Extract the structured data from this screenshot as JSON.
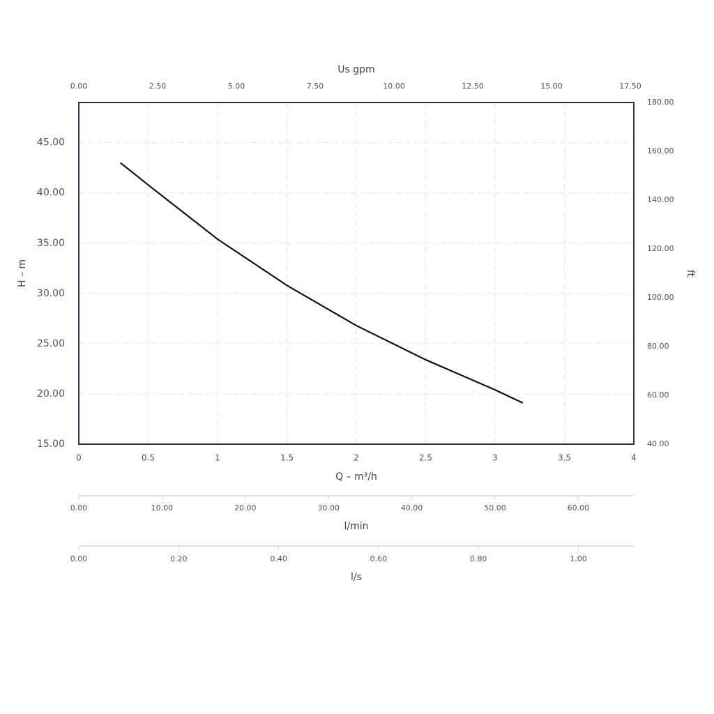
{
  "chart_data": {
    "type": "line",
    "xlabel": "Q – m³/h",
    "ylabel": "H – m",
    "y2label": "ft",
    "x": [
      0.3,
      0.5,
      1.0,
      1.5,
      2.0,
      2.5,
      3.0,
      3.2
    ],
    "values": [
      43.0,
      40.8,
      35.4,
      30.8,
      26.8,
      23.4,
      20.4,
      19.1
    ],
    "color": "#111111",
    "xlim": [
      0,
      4
    ],
    "xticks": [
      0,
      0.5,
      1,
      1.5,
      2,
      2.5,
      3,
      3.5,
      4
    ],
    "ylim": [
      15,
      49
    ],
    "yticks": [
      {
        "value": 15,
        "label": "15.00"
      },
      {
        "value": 20,
        "label": "20.00"
      },
      {
        "value": 25,
        "label": "25.00"
      },
      {
        "value": 30,
        "label": "30.00"
      },
      {
        "value": 35,
        "label": "35.00"
      },
      {
        "value": 40,
        "label": "40.00"
      },
      {
        "value": 45,
        "label": "45.00"
      }
    ],
    "y2lim": [
      40,
      180
    ],
    "y2ticks": [
      {
        "value": 40,
        "label": "40.00"
      },
      {
        "value": 60,
        "label": "60.00"
      },
      {
        "value": 80,
        "label": "80.00"
      },
      {
        "value": 100,
        "label": "100.00"
      },
      {
        "value": 120,
        "label": "120.00"
      },
      {
        "value": 140,
        "label": "140.00"
      },
      {
        "value": 160,
        "label": "160.00"
      },
      {
        "value": 180,
        "label": "180.00"
      }
    ],
    "grid": true,
    "extra_x_axes": [
      {
        "label": "Us gpm",
        "lim": [
          0,
          17.61
        ],
        "ticks": [
          {
            "value": 0,
            "label": "0.00"
          },
          {
            "value": 2.5,
            "label": "2.50"
          },
          {
            "value": 5,
            "label": "5.00"
          },
          {
            "value": 7.5,
            "label": "7.50"
          },
          {
            "value": 10,
            "label": "10.00"
          },
          {
            "value": 12.5,
            "label": "12.50"
          },
          {
            "value": 15,
            "label": "15.00"
          },
          {
            "value": 17.5,
            "label": "17.50"
          }
        ]
      },
      {
        "label": "l/min",
        "lim": [
          0,
          66.67
        ],
        "ticks": [
          {
            "value": 0,
            "label": "0.00"
          },
          {
            "value": 10,
            "label": "10.00"
          },
          {
            "value": 20,
            "label": "20.00"
          },
          {
            "value": 30,
            "label": "30.00"
          },
          {
            "value": 40,
            "label": "40.00"
          },
          {
            "value": 50,
            "label": "50.00"
          },
          {
            "value": 60,
            "label": "60.00"
          }
        ]
      },
      {
        "label": "l/s",
        "lim": [
          0,
          1.111
        ],
        "ticks": [
          {
            "value": 0,
            "label": "0.00"
          },
          {
            "value": 0.2,
            "label": "0.20"
          },
          {
            "value": 0.4,
            "label": "0.40"
          },
          {
            "value": 0.6,
            "label": "0.60"
          },
          {
            "value": 0.8,
            "label": "0.80"
          },
          {
            "value": 1,
            "label": "1.00"
          }
        ]
      }
    ]
  }
}
